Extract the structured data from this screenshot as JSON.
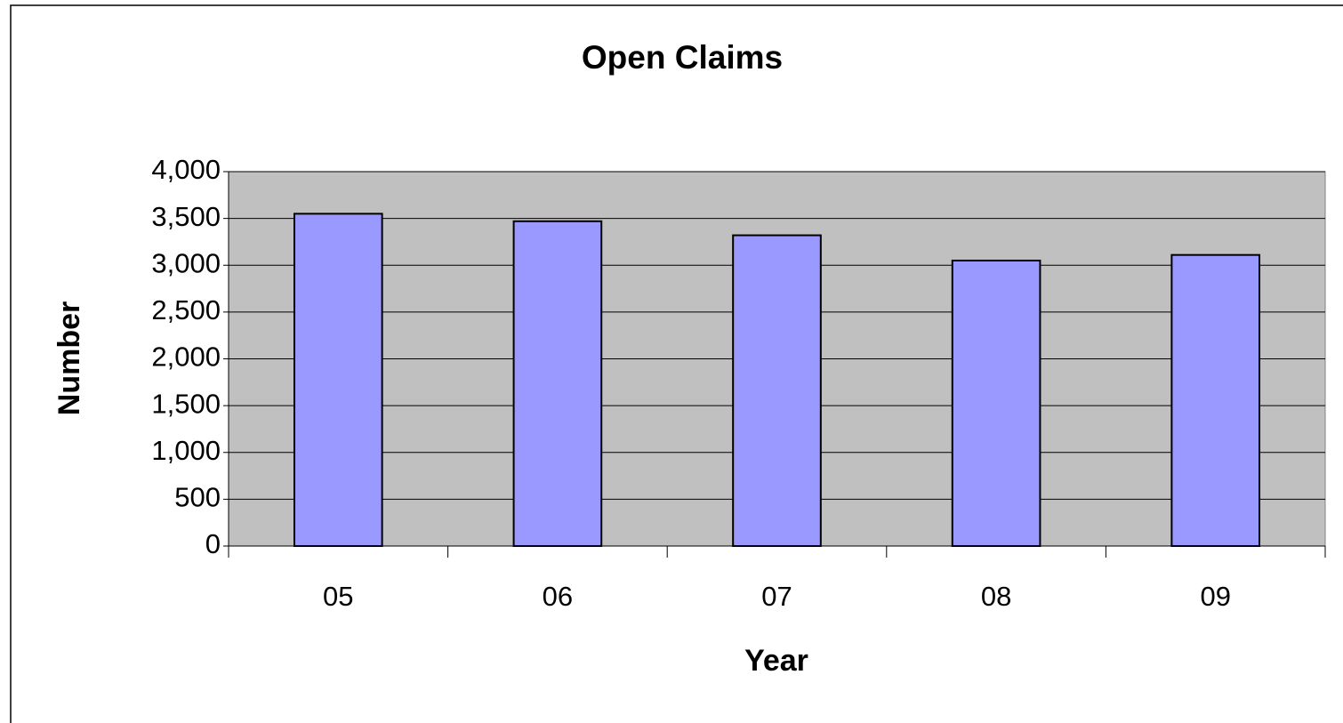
{
  "chart_data": {
    "type": "bar",
    "title": "Open Claims",
    "x_label": "Year",
    "y_label": "Number",
    "categories": [
      "05",
      "06",
      "07",
      "08",
      "09"
    ],
    "values": [
      3550,
      3470,
      3320,
      3050,
      3110
    ],
    "color": "#9999ff",
    "ylim": [
      0,
      4000
    ],
    "yticks": [
      0,
      500,
      {
        "value": 1000,
        "label": "1,000"
      },
      {
        "value": 1500,
        "label": "1,500"
      },
      {
        "value": 2000,
        "label": "2,000"
      },
      {
        "value": 2500,
        "label": "2,500"
      },
      {
        "value": 3000,
        "label": "3,000"
      },
      {
        "value": 3500,
        "label": "3,500"
      },
      {
        "value": 4000,
        "label": "4,000"
      }
    ],
    "grid": true
  }
}
